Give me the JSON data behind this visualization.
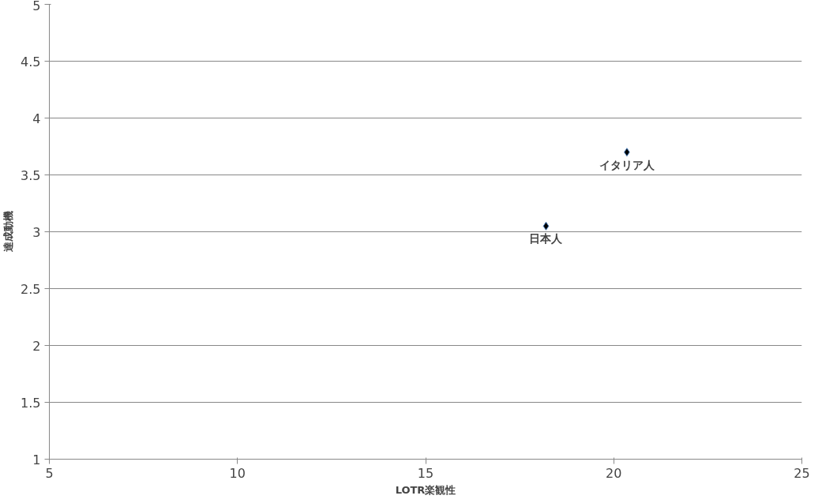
{
  "chart_data": {
    "type": "scatter",
    "xlabel": "LOTR楽観性",
    "ylabel": "達成動機",
    "x": [
      18.2,
      20.35
    ],
    "series": [
      {
        "color": "#000000",
        "values": [
          3.05,
          3.7
        ]
      }
    ],
    "annotations": [
      {
        "text": "日本人",
        "x": 18.2,
        "y": 3.05
      },
      {
        "text": "イタリア人",
        "x": 20.35,
        "y": 3.7
      }
    ],
    "xlim": [
      5,
      25
    ],
    "xticks": [
      5,
      10,
      15,
      20,
      25
    ],
    "ylim": [
      1,
      5
    ],
    "yticks": [
      1,
      1.5,
      2,
      2.5,
      3,
      3.5,
      4,
      4.5,
      5
    ],
    "grid": "y",
    "marker": "diamond"
  }
}
